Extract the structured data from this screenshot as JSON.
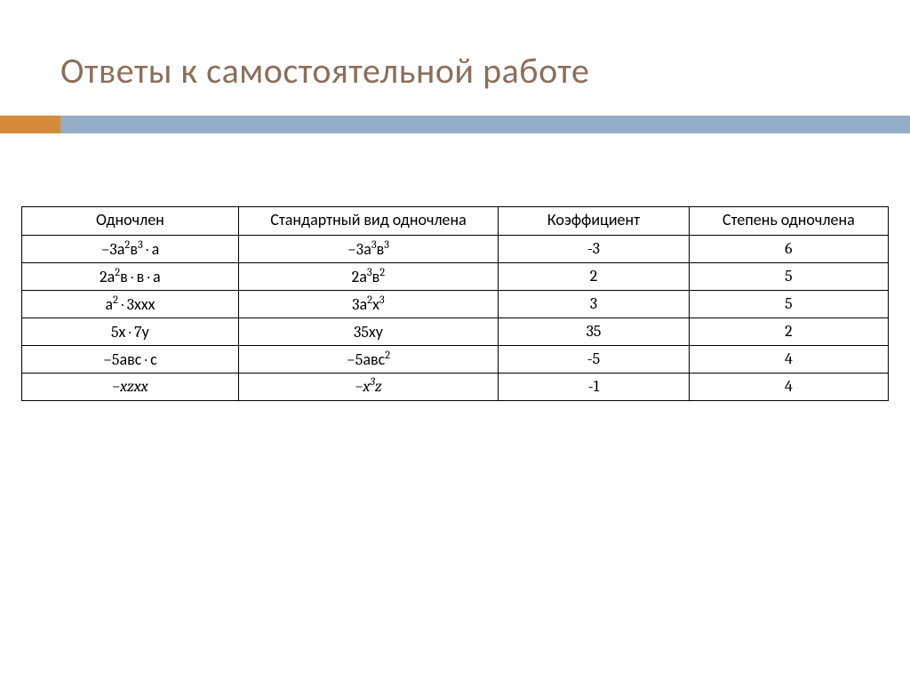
{
  "title": {
    "text": "Ответы к  самостоятельной работе",
    "color": "#8b6f5c",
    "fontsize": 40
  },
  "accent": {
    "left_color": "#d48b3c",
    "right_color": "#94aec8",
    "height": 20
  },
  "table": {
    "type": "table",
    "columns": [
      {
        "label": "Одночлен",
        "width_pct": 25
      },
      {
        "label": "Стандартный вид одночлена",
        "width_pct": 30
      },
      {
        "label": "Коэффициент",
        "width_pct": 22
      },
      {
        "label": "Степень одночлена",
        "width_pct": 23
      }
    ],
    "rows": [
      {
        "monomial_html": "−3а<sup>2</sup>в<sup>3</sup> · а",
        "standard_html": "−3а<sup>3</sup>в<sup>3</sup>",
        "coefficient": "-3",
        "degree": "6"
      },
      {
        "monomial_html": "2а<sup>2</sup>в · в · а",
        "standard_html": "2а<sup>3</sup>в<sup>2</sup>",
        "coefficient": "2",
        "degree": "5"
      },
      {
        "monomial_html": "а<sup>2</sup> · 3ххх",
        "standard_html": "3а<sup>2</sup>х<sup>3</sup>",
        "coefficient": "3",
        "degree": "5"
      },
      {
        "monomial_html": "5х · 7у",
        "standard_html": "35ху",
        "coefficient": "35",
        "degree": "2"
      },
      {
        "monomial_html": "−5авс · с",
        "standard_html": "−5авс<sup>2</sup>",
        "coefficient": "-5",
        "degree": "4"
      },
      {
        "monomial_html": "<span class=\"serif-i\">−xzxx</span>",
        "standard_html": "<span class=\"serif-i\">−x<sup>3</sup>z</span>",
        "coefficient": "-1",
        "degree": "4"
      }
    ],
    "border_color": "#000000",
    "cell_fontsize": 18,
    "header_fontsize": 18,
    "background_color": "#ffffff"
  }
}
